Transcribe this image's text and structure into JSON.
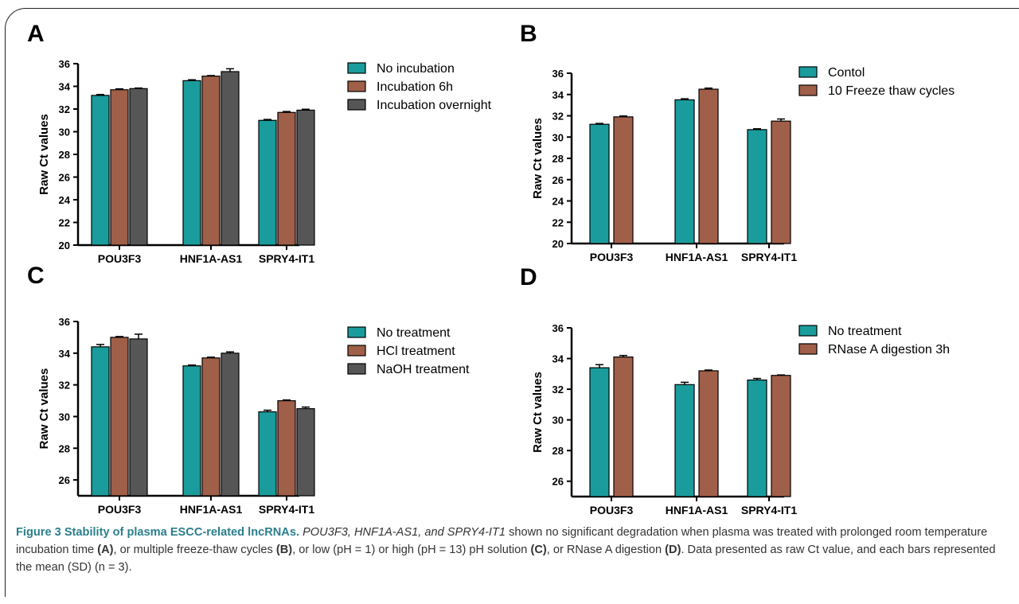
{
  "chart_data": [
    {
      "panel": "A",
      "type": "bar",
      "categories": [
        "POU3F3",
        "HNF1A-AS1",
        "SPRY4-IT1"
      ],
      "series": [
        {
          "name": "No incubation",
          "values": [
            33.2,
            34.5,
            31.0
          ],
          "errors": [
            0.08,
            0.08,
            0.08
          ]
        },
        {
          "name": "Incubation 6h",
          "values": [
            33.7,
            34.9,
            31.7
          ],
          "errors": [
            0.08,
            0.05,
            0.08
          ]
        },
        {
          "name": "Incubation overnight",
          "values": [
            33.8,
            35.3,
            31.9
          ],
          "errors": [
            0.05,
            0.25,
            0.08
          ]
        }
      ],
      "ylabel": "Raw Ct values",
      "ylim": [
        20,
        36
      ],
      "yticks": [
        20,
        22,
        24,
        26,
        28,
        30,
        32,
        34,
        36
      ],
      "legend": "right"
    },
    {
      "panel": "B",
      "type": "bar",
      "categories": [
        "POU3F3",
        "HNF1A-AS1",
        "SPRY4-IT1"
      ],
      "series": [
        {
          "name": "Contol",
          "values": [
            31.2,
            33.5,
            30.7
          ],
          "errors": [
            0.08,
            0.1,
            0.08
          ]
        },
        {
          "name": "10 Freeze thaw cycles",
          "values": [
            31.9,
            34.5,
            31.5
          ],
          "errors": [
            0.08,
            0.1,
            0.2
          ]
        }
      ],
      "ylabel": "Raw Ct values",
      "ylim": [
        20,
        36
      ],
      "yticks": [
        20,
        22,
        24,
        26,
        28,
        30,
        32,
        34,
        36
      ],
      "legend": "right"
    },
    {
      "panel": "C",
      "type": "bar",
      "categories": [
        "POU3F3",
        "HNF1A-AS1",
        "SPRY4-IT1"
      ],
      "series": [
        {
          "name": "No treatment",
          "values": [
            34.4,
            33.2,
            30.3
          ],
          "errors": [
            0.15,
            0.05,
            0.1
          ]
        },
        {
          "name": "HCl treatment",
          "values": [
            35.0,
            33.7,
            31.0
          ],
          "errors": [
            0.05,
            0.05,
            0.05
          ]
        },
        {
          "name": "NaOH treatment",
          "values": [
            34.9,
            34.0,
            30.5
          ],
          "errors": [
            0.3,
            0.08,
            0.1
          ]
        }
      ],
      "ylabel": "Raw Ct values",
      "ylim": [
        25,
        36
      ],
      "yticks": [
        26,
        28,
        30,
        32,
        34,
        36
      ],
      "legend": "right"
    },
    {
      "panel": "D",
      "type": "bar",
      "categories": [
        "POU3F3",
        "HNF1A-AS1",
        "SPRY4-IT1"
      ],
      "series": [
        {
          "name": "No treatment",
          "values": [
            33.4,
            32.3,
            32.6
          ],
          "errors": [
            0.2,
            0.15,
            0.1
          ]
        },
        {
          "name": "RNase A digestion 3h",
          "values": [
            34.1,
            33.2,
            32.9
          ],
          "errors": [
            0.1,
            0.05,
            0.03
          ]
        }
      ],
      "ylabel": "Raw Ct values",
      "ylim": [
        25,
        36
      ],
      "yticks": [
        26,
        28,
        30,
        32,
        34,
        36
      ],
      "legend": "right"
    }
  ],
  "colors": {
    "teal": "#1a9c9c",
    "brown": "#a05f48",
    "gray": "#565656"
  },
  "caption": {
    "title": "Figure 3 Stability of plasma ESCC-related lncRNAs.",
    "genes": "POU3F3, HNF1A-AS1, and SPRY4-IT1",
    "text1": " shown no significant degradation when plasma was treated with prolonged room temperature incubation time ",
    "refA": "(A)",
    "text2": ", or multiple freeze-thaw cycles ",
    "refB": "(B)",
    "text3": ", or low (pH = 1) or high (pH = 13) pH solution ",
    "refC": "(C)",
    "text4": ", or RNase A digestion ",
    "refD": "(D)",
    "text5": ". Data presented as raw Ct value, and each bars represented the mean (SD) (n = 3)."
  }
}
